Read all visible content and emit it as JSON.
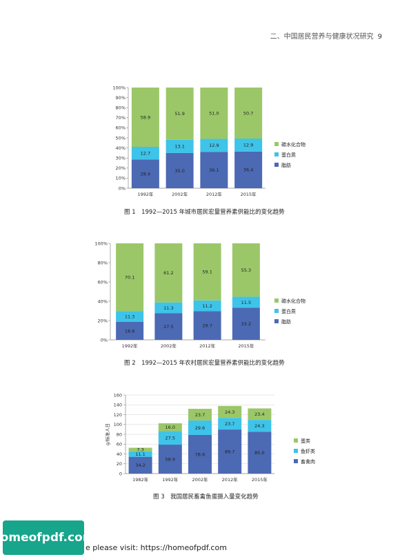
{
  "header": {
    "title": "二、中国居民营养与健康状况研究",
    "page": "9"
  },
  "captions": {
    "fig1": "图 1　1992—2015 年城市居民宏量营养素供能比的变化趋势",
    "fig2": "图 2　1992—2015 年农村居民宏量营养素供能比的变化趋势",
    "fig3": "图 3　我国居民畜禽鱼蛋摄入量变化趋势"
  },
  "footer": {
    "logo": "homeofpdf.com",
    "text": "e please visit: https://homeofpdf.com"
  },
  "colors": {
    "green": "#9bc768",
    "cyan": "#3ec3e9",
    "blue": "#4c69b4"
  },
  "chart_data": [
    {
      "type": "bar",
      "stacked": true,
      "categories": [
        "1992年",
        "2002年",
        "2012年",
        "2015年"
      ],
      "series": [
        {
          "name": "脂肪",
          "values": [
            28.4,
            35.0,
            36.1,
            36.4
          ]
        },
        {
          "name": "蛋白质",
          "values": [
            12.7,
            13.1,
            12.9,
            12.9
          ]
        },
        {
          "name": "碳水化合物",
          "values": [
            58.9,
            51.9,
            51.0,
            50.7
          ]
        }
      ],
      "ylim": [
        0,
        100
      ],
      "yticks": [
        "0%",
        "10%",
        "20%",
        "30%",
        "40%",
        "50%",
        "60%",
        "70%",
        "80%",
        "90%",
        "100%"
      ],
      "legend": "right",
      "grid": false
    },
    {
      "type": "bar",
      "stacked": true,
      "categories": [
        "1992年",
        "2002年",
        "2012年",
        "2015年"
      ],
      "series": [
        {
          "name": "脂肪",
          "values": [
            18.6,
            27.5,
            29.7,
            33.2
          ]
        },
        {
          "name": "蛋白质",
          "values": [
            11.3,
            11.3,
            11.2,
            11.5
          ]
        },
        {
          "name": "碳水化合物",
          "values": [
            70.1,
            61.2,
            59.1,
            55.3
          ]
        }
      ],
      "ylim": [
        0,
        100
      ],
      "yticks": [
        "0%",
        "20%",
        "40%",
        "60%",
        "80%",
        "100%"
      ],
      "legend": "right",
      "grid": false
    },
    {
      "type": "bar",
      "stacked": true,
      "categories": [
        "1982年",
        "1992年",
        "2002年",
        "2012年",
        "2015年"
      ],
      "series": [
        {
          "name": "畜禽肉",
          "values": [
            34.2,
            58.9,
            78.6,
            89.7,
            85.0
          ]
        },
        {
          "name": "鱼虾类",
          "values": [
            11.1,
            27.5,
            29.6,
            23.7,
            24.3
          ]
        },
        {
          "name": "蛋类",
          "values": [
            7.3,
            16.0,
            23.7,
            24.3,
            23.4
          ]
        }
      ],
      "ylim": [
        0,
        160
      ],
      "yticks": [
        "0",
        "20",
        "40",
        "60",
        "80",
        "100",
        "120",
        "140",
        "160"
      ],
      "ylabel": "g/标准人日",
      "legend": "right",
      "grid": true
    }
  ]
}
